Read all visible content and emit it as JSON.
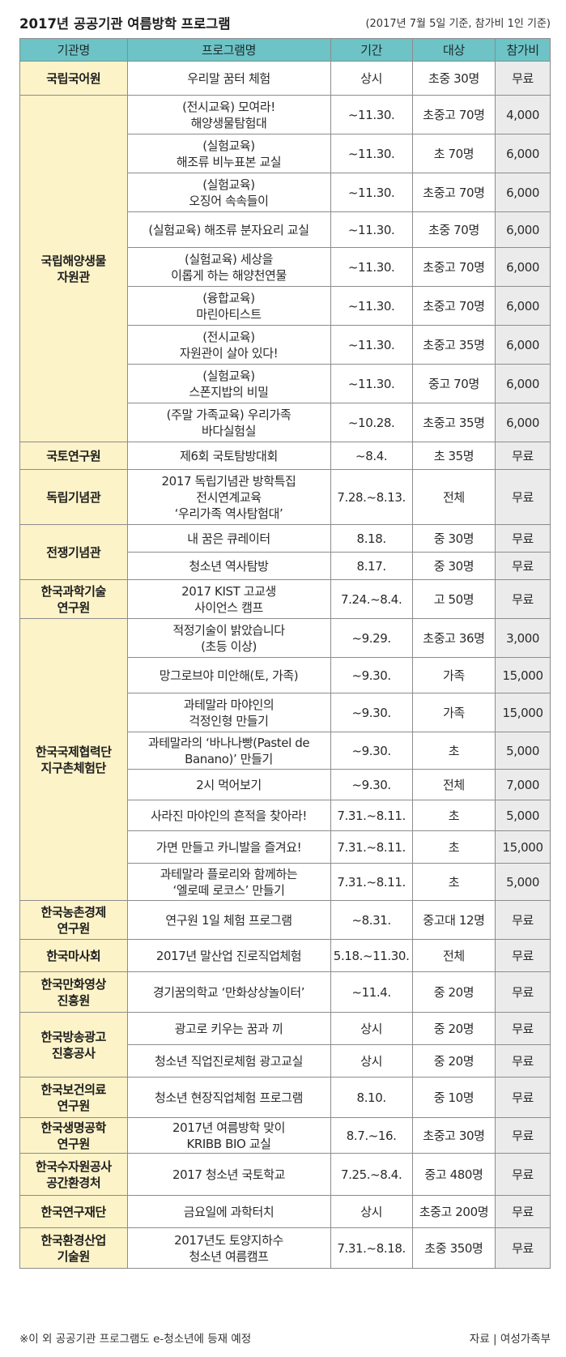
{
  "title": "2017년 공공기관 여름방학 프로그램",
  "subtitle": "(2017년 7월 5일 기준, 참가비 1인 기준)",
  "columns": [
    "기관명",
    "프로그램명",
    "기간",
    "대상",
    "참가비"
  ],
  "groups": [
    {
      "org": "국립국어원",
      "rows": [
        {
          "program": "우리말 꿈터 체험",
          "period": "상시",
          "target": "초중 30명",
          "fee": "무료",
          "h": 42
        }
      ]
    },
    {
      "org": "국립해양생물\n자원관",
      "rows": [
        {
          "program": "(전시교육) 모여라!\n해양생물탐험대",
          "period": "~11.30.",
          "target": "초중고 70명",
          "fee": "4,000",
          "h": 48
        },
        {
          "program": "(실험교육)\n해조류 비누표본 교실",
          "period": "~11.30.",
          "target": "초 70명",
          "fee": "6,000",
          "h": 48
        },
        {
          "program": "(실험교육)\n오징어 속속들이",
          "period": "~11.30.",
          "target": "초중고 70명",
          "fee": "6,000",
          "h": 48
        },
        {
          "program": "(실험교육) 해조류 분자요리 교실",
          "period": "~11.30.",
          "target": "초중 70명",
          "fee": "6,000",
          "h": 44
        },
        {
          "program": "(실험교육) 세상을\n이롭게 하는 해양천연물",
          "period": "~11.30.",
          "target": "초중고 70명",
          "fee": "6,000",
          "h": 48
        },
        {
          "program": "(융합교육)\n마린아티스트",
          "period": "~11.30.",
          "target": "초중고 70명",
          "fee": "6,000",
          "h": 48
        },
        {
          "program": "(전시교육)\n자원관이 살아 있다!",
          "period": "~11.30.",
          "target": "초중고 35명",
          "fee": "6,000",
          "h": 48
        },
        {
          "program": "(실험교육)\n스폰지밥의 비밀",
          "period": "~11.30.",
          "target": "중고 70명",
          "fee": "6,000",
          "h": 48
        },
        {
          "program": "(주말 가족교육) 우리가족\n바다실험실",
          "period": "~10.28.",
          "target": "초중고 35명",
          "fee": "6,000",
          "h": 48
        }
      ]
    },
    {
      "org": "국토연구원",
      "rows": [
        {
          "program": "제6회 국토탐방대회",
          "period": "~8.4.",
          "target": "초 35명",
          "fee": "무료",
          "h": 34
        }
      ]
    },
    {
      "org": "독립기념관",
      "rows": [
        {
          "program": "2017 독립기념관 방학특집\n전시연계교육\n‘우리가족 역사탐험대’",
          "period": "7.28.~8.13.",
          "target": "전체",
          "fee": "무료",
          "h": 68
        }
      ]
    },
    {
      "org": "전쟁기념관",
      "rows": [
        {
          "program": "내 꿈은 큐레이터",
          "period": "8.18.",
          "target": "중 30명",
          "fee": "무료",
          "h": 34
        },
        {
          "program": "청소년 역사탐방",
          "period": "8.17.",
          "target": "중 30명",
          "fee": "무료",
          "h": 34
        }
      ]
    },
    {
      "org": "한국과학기술\n연구원",
      "rows": [
        {
          "program": "2017 KIST 고교생\n사이언스 캠프",
          "period": "7.24.~8.4.",
          "target": "고 50명",
          "fee": "무료",
          "h": 48
        }
      ]
    },
    {
      "org": "한국국제협력단\n지구촌체험단",
      "rows": [
        {
          "program": "적정기술이 밝았습니다\n(초등 이상)",
          "period": "~9.29.",
          "target": "초중고 36명",
          "fee": "3,000",
          "h": 48
        },
        {
          "program": "망그로브야 미안해(토, 가족)",
          "period": "~9.30.",
          "target": "가족",
          "fee": "15,000",
          "h": 44
        },
        {
          "program": "과테말라 마야인의\n걱정인형 만들기",
          "period": "~9.30.",
          "target": "가족",
          "fee": "15,000",
          "h": 48
        },
        {
          "program": "과테말라의 ‘바나나빵(Pastel de\nBanano)’ 만들기",
          "period": "~9.30.",
          "target": "초",
          "fee": "5,000",
          "h": 46
        },
        {
          "program": "2시 먹어보기",
          "period": "~9.30.",
          "target": "전체",
          "fee": "7,000",
          "h": 38
        },
        {
          "program": "사라진 마야인의 흔적을 찾아라!",
          "period": "7.31.~8.11.",
          "target": "초",
          "fee": "5,000",
          "h": 38
        },
        {
          "program": "가면 만들고 카니발을 즐겨요!",
          "period": "7.31.~8.11.",
          "target": "초",
          "fee": "15,000",
          "h": 40
        },
        {
          "program": "과테말라 플로리와 함께하는\n‘엘로떼 로코스’ 만들기",
          "period": "7.31.~8.11.",
          "target": "초",
          "fee": "5,000",
          "h": 46
        }
      ]
    },
    {
      "org": "한국농촌경제\n연구원",
      "rows": [
        {
          "program": "연구원 1일 체험 프로그램",
          "period": "~8.31.",
          "target": "중고대 12명",
          "fee": "무료",
          "h": 48
        }
      ]
    },
    {
      "org": "한국마사회",
      "rows": [
        {
          "program": "2017년 말산업 진로직업체험",
          "period": "5.18.~11.30.",
          "target": "전체",
          "fee": "무료",
          "h": 40
        }
      ]
    },
    {
      "org": "한국만화영상\n진흥원",
      "rows": [
        {
          "program": "경기꿈의학교 ‘만화상상놀이터’",
          "period": "~11.4.",
          "target": "중 20명",
          "fee": "무료",
          "h": 50
        }
      ]
    },
    {
      "org": "한국방송광고\n진흥공사",
      "rows": [
        {
          "program": "광고로 키우는 꿈과 끼",
          "period": "상시",
          "target": "중 20명",
          "fee": "무료",
          "h": 40
        },
        {
          "program": "청소년 직업진로체험 광고교실",
          "period": "상시",
          "target": "중 20명",
          "fee": "무료",
          "h": 40
        }
      ]
    },
    {
      "org": "한국보건의료\n연구원",
      "rows": [
        {
          "program": "청소년 현장직업체험 프로그램",
          "period": "8.10.",
          "target": "중 10명",
          "fee": "무료",
          "h": 50
        }
      ]
    },
    {
      "org": "한국생명공학\n연구원",
      "rows": [
        {
          "program": "2017년 여름방학 맞이\nKRIBB BIO 교실",
          "period": "8.7.~16.",
          "target": "초중고 30명",
          "fee": "무료",
          "h": 44
        }
      ]
    },
    {
      "org": "한국수자원공사\n공간환경처",
      "rows": [
        {
          "program": "2017 청소년 국토학교",
          "period": "7.25.~8.4.",
          "target": "중고 480명",
          "fee": "무료",
          "h": 52
        }
      ]
    },
    {
      "org": "한국연구재단",
      "rows": [
        {
          "program": "금요일에 과학터치",
          "period": "상시",
          "target": "초중고 200명",
          "fee": "무료",
          "h": 40
        }
      ]
    },
    {
      "org": "한국환경산업\n기술원",
      "rows": [
        {
          "program": "2017년도 토양지하수\n청소년 여름캠프",
          "period": "7.31.~8.18.",
          "target": "초중 350명",
          "fee": "무료",
          "h": 50
        }
      ]
    }
  ],
  "footnote": "※이 외 공공기관 프로그램도 e-청소년에 등재 예정",
  "source": "자료 | 여성가족부"
}
